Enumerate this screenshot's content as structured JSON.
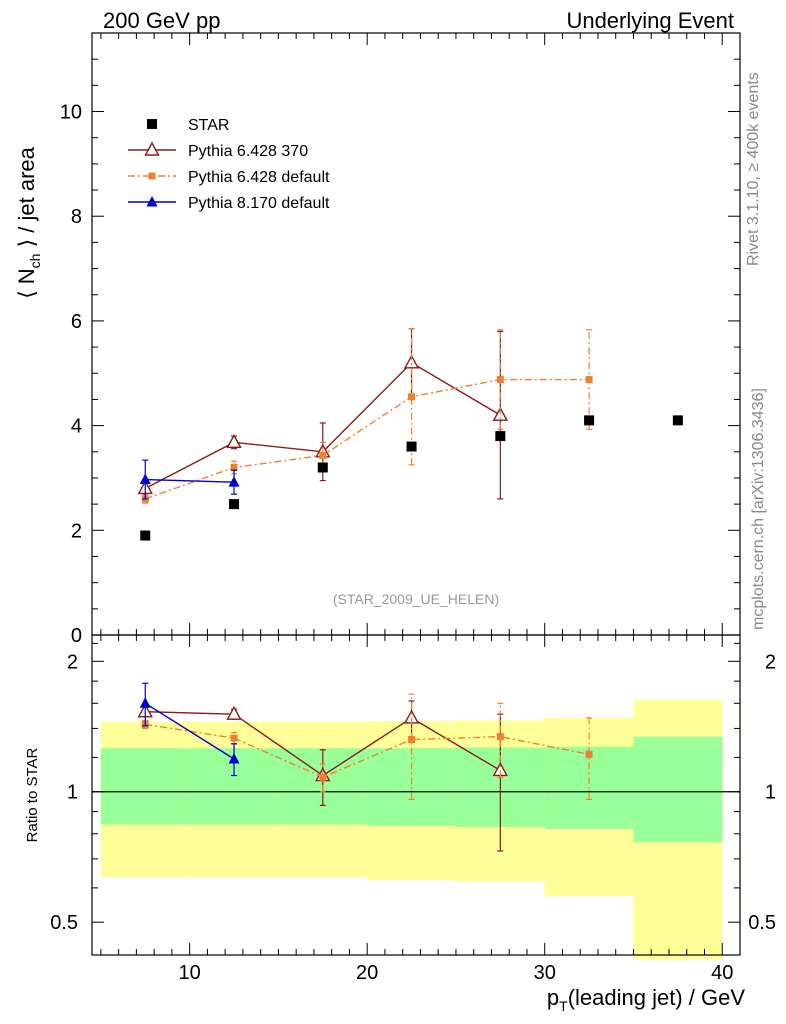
{
  "header": {
    "left": "200 GeV pp",
    "right": "Underlying Event"
  },
  "side_labels": {
    "rivet": "Rivet 3.1.10, ≥ 400k events",
    "mcplots": "mcplots.cern.ch [arXiv:1306.3436]"
  },
  "chart_data": [
    {
      "type": "scatter",
      "panel": "main",
      "ylabel_main": "⟨ N",
      "ylabel_sub": "ch",
      "ylabel_rest": " ⟩ / jet area",
      "xlim": [
        4.5,
        41
      ],
      "ylim": [
        0,
        11.5
      ],
      "yticks": [
        0,
        2,
        4,
        6,
        8,
        10
      ],
      "annotation": "(STAR_2009_UE_HELEN)",
      "legend": {
        "placement": "top-left"
      },
      "series": [
        {
          "name": "STAR",
          "color": "#000000",
          "marker": "square",
          "line": "none",
          "x": [
            7.5,
            12.5,
            17.5,
            22.5,
            27.5,
            32.5,
            37.5
          ],
          "y": [
            1.9,
            2.5,
            3.2,
            3.6,
            3.8,
            4.1,
            4.1
          ]
        },
        {
          "name": "Pythia 6.428 370",
          "color": "#8b1a1a",
          "marker": "open-triangle",
          "line": "solid",
          "x": [
            7.5,
            12.5,
            17.5,
            22.5,
            27.5
          ],
          "y": [
            2.8,
            3.68,
            3.5,
            5.2,
            4.2
          ],
          "err": [
            0.1,
            0.12,
            0.55,
            0.65,
            1.6
          ]
        },
        {
          "name": "Pythia 6.428 default",
          "color": "#f08030",
          "marker": "filled-square",
          "line": "dashdot",
          "x": [
            7.5,
            12.5,
            17.5,
            22.5,
            27.5,
            32.5
          ],
          "y": [
            2.6,
            3.2,
            3.43,
            4.55,
            4.88,
            4.88
          ],
          "err": [
            0.08,
            0.12,
            0.25,
            1.3,
            0.95,
            0.95
          ]
        },
        {
          "name": "Pythia 8.170 default",
          "color": "#0000cc",
          "marker": "filled-triangle",
          "line": "solid",
          "x": [
            7.5,
            12.5
          ],
          "y": [
            2.97,
            2.92
          ],
          "err": [
            0.37,
            0.23
          ]
        }
      ]
    },
    {
      "type": "scatter",
      "panel": "ratio",
      "xlabel_main": "p",
      "xlabel_sub": "T",
      "xlabel_rest": "(leading jet) / GeV",
      "ylabel": "Ratio to STAR",
      "yscale": "log",
      "xlim": [
        4.5,
        41
      ],
      "ylim": [
        0.42,
        2.3
      ],
      "yticks": [
        0.5,
        1,
        2
      ],
      "ytick_labels": [
        "0.5",
        "1",
        "2"
      ],
      "xticks": [
        10,
        20,
        30,
        40
      ],
      "bands": {
        "bins": [
          [
            5,
            10
          ],
          [
            10,
            15
          ],
          [
            15,
            20
          ],
          [
            20,
            25
          ],
          [
            25,
            30
          ],
          [
            30,
            35
          ],
          [
            35,
            40
          ]
        ],
        "inner_color": "#99ff99",
        "outer_color": "#ffff99",
        "inner_lo": [
          0.84,
          0.84,
          0.84,
          0.835,
          0.83,
          0.82,
          0.765
        ],
        "inner_hi": [
          1.26,
          1.26,
          1.26,
          1.26,
          1.265,
          1.27,
          1.34
        ],
        "outer_lo": [
          0.635,
          0.635,
          0.635,
          0.625,
          0.62,
          0.575,
          0.41
        ],
        "outer_hi": [
          1.45,
          1.45,
          1.45,
          1.455,
          1.46,
          1.48,
          1.63
        ]
      },
      "series": [
        {
          "name": "Pythia 6.428 370",
          "color": "#8b1a1a",
          "marker": "open-triangle",
          "line": "solid",
          "x": [
            7.5,
            12.5,
            17.5,
            22.5,
            27.5
          ],
          "y": [
            1.53,
            1.51,
            1.09,
            1.48,
            1.12
          ],
          "err": [
            0.04,
            0.04,
            0.16,
            0.14,
            0.39
          ]
        },
        {
          "name": "Pythia 6.428 default",
          "color": "#f08030",
          "marker": "filled-square",
          "line": "dashdot",
          "x": [
            7.5,
            12.5,
            17.5,
            22.5,
            27.5,
            32.5
          ],
          "y": [
            1.43,
            1.33,
            1.08,
            1.32,
            1.34,
            1.22
          ],
          "err": [
            0.03,
            0.04,
            0.08,
            0.36,
            0.26,
            0.26
          ]
        },
        {
          "name": "Pythia 8.170 default",
          "color": "#0000cc",
          "marker": "filled-triangle",
          "line": "solid",
          "x": [
            7.5,
            12.5
          ],
          "y": [
            1.6,
            1.19
          ],
          "err": [
            0.18,
            0.1
          ]
        }
      ]
    }
  ]
}
